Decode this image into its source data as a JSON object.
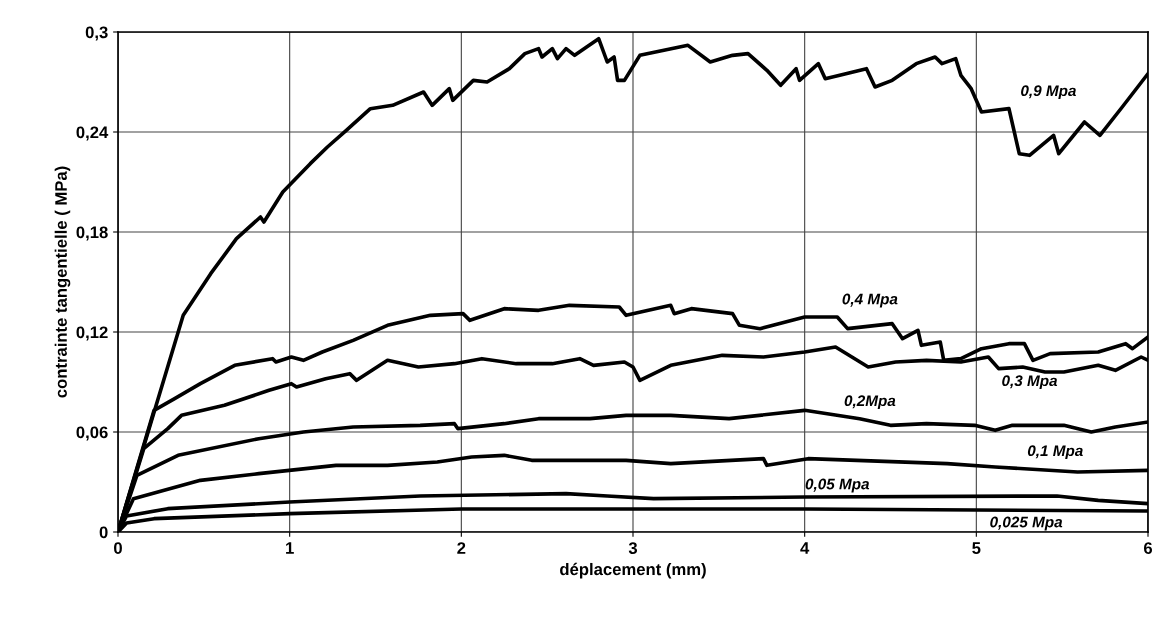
{
  "chart_data": {
    "type": "line",
    "xlabel": "déplacement (mm)",
    "ylabel": "contrainte tangentielle ( MPa)",
    "xlim": [
      0,
      6
    ],
    "xticks": [
      0,
      1,
      2,
      3,
      4,
      5,
      6
    ],
    "ylim": [
      0,
      0.3
    ],
    "yticks": [
      0,
      {
        "value": 0.06,
        "label": "0,06"
      },
      {
        "value": 0.12,
        "label": "0,12"
      },
      {
        "value": 0.18,
        "label": "0,18"
      },
      {
        "value": 0.24,
        "label": "0,24"
      },
      {
        "value": 0.3,
        "label": "0,3"
      }
    ],
    "grid": true,
    "legend": false,
    "marker": "none",
    "line_style": "solid",
    "series": [
      {
        "name": "0,9 Mpa",
        "color": "#000000",
        "x": [
          0,
          0.38,
          0.54,
          0.69,
          0.83,
          0.85,
          0.96,
          1.12,
          1.22,
          1.33,
          1.47,
          1.6,
          1.78,
          1.83,
          1.93,
          1.95,
          2.07,
          2.15,
          2.28,
          2.37,
          2.45,
          2.47,
          2.53,
          2.56,
          2.61,
          2.66,
          2.73,
          2.8,
          2.85,
          2.89,
          2.91,
          2.95,
          3.04,
          3.32,
          3.45,
          3.58,
          3.67,
          3.78,
          3.86,
          3.95,
          3.97,
          4.08,
          4.12,
          4.36,
          4.41,
          4.51,
          4.65,
          4.76,
          4.8,
          4.88,
          4.91,
          4.97,
          5.03,
          5.19,
          5.25,
          5.31,
          5.45,
          5.48,
          5.63,
          5.72,
          5.85,
          6.0
        ],
        "values": [
          0,
          0.13,
          0.155,
          0.176,
          0.189,
          0.186,
          0.204,
          0.221,
          0.231,
          0.241,
          0.254,
          0.256,
          0.264,
          0.256,
          0.266,
          0.259,
          0.271,
          0.27,
          0.278,
          0.287,
          0.29,
          0.285,
          0.29,
          0.284,
          0.29,
          0.286,
          0.291,
          0.296,
          0.282,
          0.285,
          0.271,
          0.271,
          0.286,
          0.292,
          0.282,
          0.286,
          0.287,
          0.277,
          0.268,
          0.278,
          0.271,
          0.281,
          0.272,
          0.278,
          0.267,
          0.271,
          0.281,
          0.285,
          0.281,
          0.284,
          0.274,
          0.266,
          0.252,
          0.254,
          0.227,
          0.226,
          0.238,
          0.227,
          0.246,
          0.238,
          0.255,
          0.275
        ]
      },
      {
        "name": "0,4 Mpa",
        "color": "#000000",
        "x": [
          0,
          0.21,
          0.33,
          0.48,
          0.68,
          0.9,
          0.92,
          1.01,
          1.08,
          1.19,
          1.37,
          1.57,
          1.82,
          2.01,
          2.05,
          2.25,
          2.45,
          2.63,
          2.92,
          2.96,
          3.22,
          3.24,
          3.34,
          3.58,
          3.62,
          3.74,
          4.0,
          4.19,
          4.25,
          4.51,
          4.57,
          4.66,
          4.68,
          4.79,
          4.81,
          4.91,
          5.03,
          5.19,
          5.28,
          5.33,
          5.43,
          5.71,
          5.87,
          5.91,
          6.0
        ],
        "values": [
          0,
          0.073,
          0.08,
          0.089,
          0.1,
          0.104,
          0.102,
          0.105,
          0.103,
          0.108,
          0.115,
          0.124,
          0.13,
          0.131,
          0.127,
          0.134,
          0.133,
          0.136,
          0.135,
          0.13,
          0.136,
          0.131,
          0.134,
          0.131,
          0.124,
          0.122,
          0.129,
          0.129,
          0.122,
          0.125,
          0.116,
          0.121,
          0.112,
          0.114,
          0.103,
          0.104,
          0.11,
          0.113,
          0.113,
          0.103,
          0.107,
          0.108,
          0.113,
          0.11,
          0.117
        ]
      },
      {
        "name": "0,3 Mpa",
        "color": "#000000",
        "x": [
          0,
          0.15,
          0.29,
          0.37,
          0.62,
          0.88,
          1.01,
          1.04,
          1.21,
          1.35,
          1.39,
          1.57,
          1.75,
          1.96,
          2.12,
          2.32,
          2.53,
          2.69,
          2.77,
          2.95,
          3.0,
          3.04,
          3.22,
          3.52,
          3.76,
          4.0,
          4.18,
          4.37,
          4.53,
          4.71,
          4.91,
          5.07,
          5.13,
          5.27,
          5.4,
          5.51,
          5.71,
          5.81,
          5.96,
          6.0
        ],
        "values": [
          0,
          0.05,
          0.062,
          0.07,
          0.076,
          0.085,
          0.089,
          0.087,
          0.092,
          0.095,
          0.091,
          0.103,
          0.099,
          0.101,
          0.104,
          0.101,
          0.101,
          0.104,
          0.1,
          0.102,
          0.099,
          0.091,
          0.1,
          0.106,
          0.105,
          0.108,
          0.111,
          0.099,
          0.102,
          0.103,
          0.102,
          0.105,
          0.098,
          0.099,
          0.096,
          0.096,
          0.1,
          0.097,
          0.105,
          0.103
        ]
      },
      {
        "name": "0,2Mpa",
        "color": "#000000",
        "x": [
          0,
          0.11,
          0.35,
          0.82,
          1.08,
          1.37,
          1.76,
          1.96,
          1.98,
          2.25,
          2.45,
          2.75,
          2.96,
          3.22,
          3.56,
          4.0,
          4.32,
          4.5,
          4.71,
          4.99,
          5.11,
          5.21,
          5.51,
          5.67,
          5.81,
          6.0
        ],
        "values": [
          0,
          0.034,
          0.046,
          0.056,
          0.06,
          0.063,
          0.064,
          0.065,
          0.062,
          0.065,
          0.068,
          0.068,
          0.07,
          0.07,
          0.068,
          0.073,
          0.068,
          0.064,
          0.065,
          0.064,
          0.061,
          0.064,
          0.064,
          0.06,
          0.063,
          0.066
        ]
      },
      {
        "name": "0,1 Mpa",
        "color": "#000000",
        "x": [
          0,
          0.09,
          0.48,
          0.82,
          1.27,
          1.57,
          1.86,
          2.06,
          2.25,
          2.41,
          2.96,
          3.22,
          3.76,
          3.78,
          4.02,
          4.83,
          5.11,
          5.59,
          6.0
        ],
        "values": [
          0,
          0.02,
          0.031,
          0.035,
          0.04,
          0.04,
          0.042,
          0.045,
          0.046,
          0.043,
          0.043,
          0.041,
          0.044,
          0.04,
          0.044,
          0.041,
          0.039,
          0.036,
          0.037
        ]
      },
      {
        "name": "0,05 Mpa",
        "color": "#000000",
        "x": [
          0,
          0.05,
          0.29,
          1.0,
          1.76,
          2.61,
          2.85,
          3.12,
          4.0,
          5.47,
          5.71,
          6.0
        ],
        "values": [
          0,
          0.0096,
          0.014,
          0.018,
          0.0216,
          0.023,
          0.0216,
          0.02,
          0.021,
          0.0216,
          0.019,
          0.017
        ]
      },
      {
        "name": "0,025 Mpa",
        "color": "#000000",
        "x": [
          0,
          0.05,
          0.21,
          1.0,
          2.0,
          2.96,
          4.0,
          6.0
        ],
        "values": [
          0,
          0.0054,
          0.008,
          0.011,
          0.0138,
          0.0138,
          0.0138,
          0.0126
        ]
      }
    ]
  }
}
